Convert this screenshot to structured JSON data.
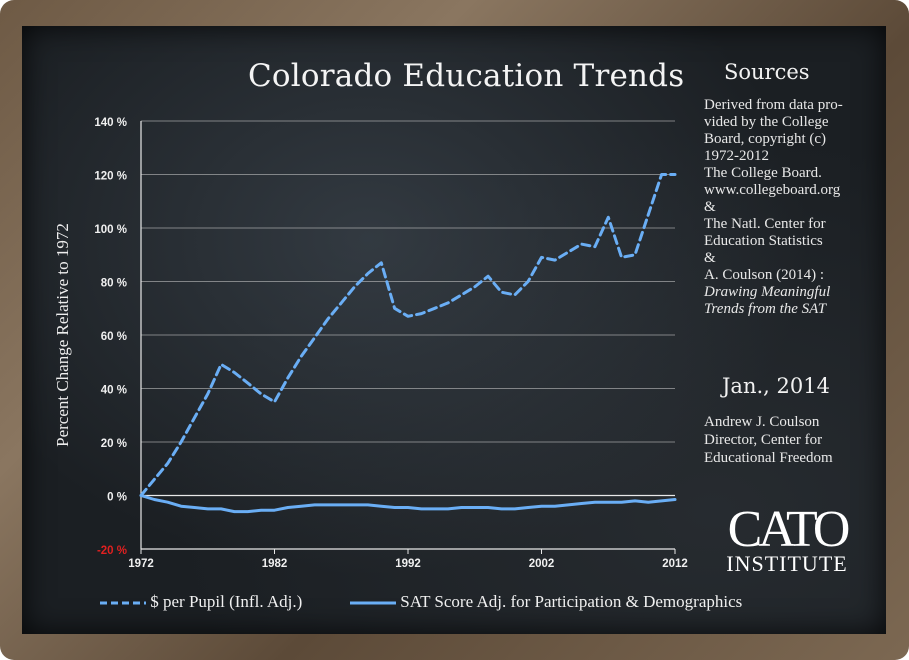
{
  "chart_data": {
    "type": "line",
    "title": "Colorado Education Trends",
    "ylabel": "Percent Change Relative to 1972",
    "xlabel": "",
    "xlim": [
      1972,
      2012
    ],
    "ylim": [
      -20,
      140
    ],
    "x_ticks": [
      "1972",
      "1982",
      "1992",
      "2002",
      "2012"
    ],
    "y_ticks": [
      "-20 %",
      "0 %",
      "20 %",
      "40 %",
      "60 %",
      "80 %",
      "100 %",
      "120 %",
      "140 %"
    ],
    "grid": true,
    "legend": "bottom",
    "series": [
      {
        "name": "$ per Pupil (Infl. Adj.)",
        "style": "dashed",
        "color": "#6aaef5",
        "x": [
          1972,
          1973,
          1974,
          1975,
          1976,
          1977,
          1978,
          1979,
          1980,
          1981,
          1982,
          1983,
          1984,
          1985,
          1986,
          1987,
          1988,
          1989,
          1990,
          1991,
          1992,
          1993,
          1994,
          1995,
          1996,
          1997,
          1998,
          1999,
          2000,
          2001,
          2002,
          2003,
          2004,
          2005,
          2006,
          2007,
          2008,
          2009,
          2010,
          2011,
          2012
        ],
        "y": [
          0,
          6,
          12,
          20,
          29,
          38,
          49,
          46,
          42,
          38,
          35,
          44,
          52,
          59,
          66,
          72,
          78,
          83,
          87,
          70,
          67,
          68,
          70,
          72,
          75,
          78,
          82,
          76,
          75,
          80,
          89,
          88,
          91,
          94,
          93,
          104,
          89,
          90,
          105,
          120,
          120
        ]
      },
      {
        "name": "SAT Score Adj. for Participation & Demographics",
        "style": "solid",
        "color": "#6aaef5",
        "x": [
          1972,
          1973,
          1974,
          1975,
          1976,
          1977,
          1978,
          1979,
          1980,
          1981,
          1982,
          1983,
          1984,
          1985,
          1986,
          1987,
          1988,
          1989,
          1990,
          1991,
          1992,
          1993,
          1994,
          1995,
          1996,
          1997,
          1998,
          1999,
          2000,
          2001,
          2002,
          2003,
          2004,
          2005,
          2006,
          2007,
          2008,
          2009,
          2010,
          2011,
          2012
        ],
        "y": [
          0,
          -1.5,
          -2.5,
          -4,
          -4.5,
          -5,
          -5,
          -6,
          -6,
          -5.5,
          -5.5,
          -4.5,
          -4,
          -3.5,
          -3.5,
          -3.5,
          -3.5,
          -3.5,
          -4,
          -4.5,
          -4.5,
          -5,
          -5,
          -5,
          -4.5,
          -4.5,
          -4.5,
          -5,
          -5,
          -4.5,
          -4,
          -4,
          -3.5,
          -3,
          -2.5,
          -2.5,
          -2.5,
          -2,
          -2.5,
          -2,
          -1.5
        ]
      }
    ]
  },
  "sources": {
    "heading": "Sources",
    "lines": [
      "Derived from data pro-",
      "vided by the College",
      "Board, copyright (c)",
      "1972-2012",
      "The College Board.",
      "www.collegeboard.org",
      "&",
      "The Natl. Center for",
      "Education Statistics",
      "&",
      "A. Coulson (2014) :"
    ],
    "italic_lines": [
      "Drawing Meaningful",
      "Trends from the SAT"
    ]
  },
  "date": "Jan., 2014",
  "author": {
    "name": "Andrew J. Coulson",
    "role_line1": "Director, Center for",
    "role_line2": "Educational Freedom"
  },
  "logo": {
    "line1": "CATO",
    "line2": "INSTITUTE"
  },
  "colors": {
    "board": "#1b1f23",
    "frame": "#7a6650",
    "series": "#6aaef5",
    "negative_tick": "#e02020",
    "grid": "#c8c8c8"
  }
}
